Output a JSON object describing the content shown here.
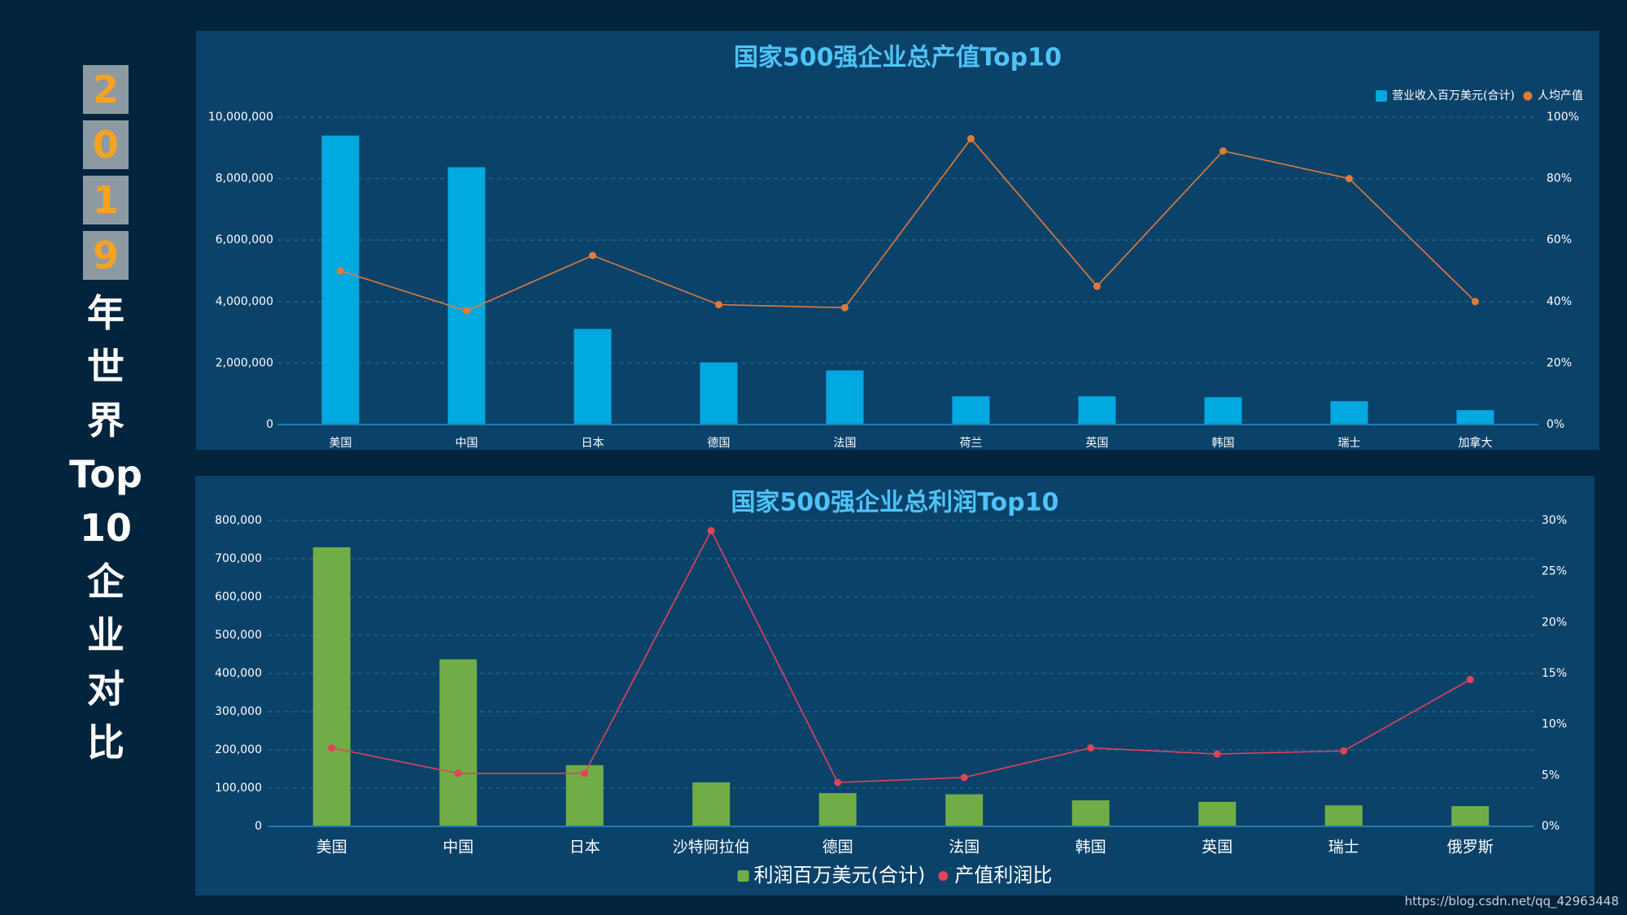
{
  "sidebar": {
    "year_digits": [
      "2",
      "0",
      "1",
      "9"
    ],
    "chars": [
      "年",
      "世",
      "界",
      "Top",
      "10",
      "企",
      "业",
      "对",
      "比"
    ]
  },
  "watermark": "https://blog.csdn.net/qq_42963448",
  "colors": {
    "background": "#03243d",
    "panel": "#0b426a",
    "title": "#4fc3f7",
    "bar1": "#00a9e0",
    "line1": "#e07b39",
    "bar2": "#70ad47",
    "line2": "#e0435a",
    "axis_text": "#ffffff",
    "grid": "#1d6a8f"
  },
  "chart_data": [
    {
      "type": "bar",
      "title": "国家500强企业总产值Top10",
      "categories": [
        "美国",
        "中国",
        "日本",
        "德国",
        "法国",
        "荷兰",
        "英国",
        "韩国",
        "瑞士",
        "加拿大"
      ],
      "series": [
        {
          "name": "营业收入百万美元(合计)",
          "type": "bar",
          "axis": "left",
          "values": [
            9400000,
            8370000,
            3110000,
            2020000,
            1760000,
            920000,
            920000,
            890000,
            760000,
            470000
          ]
        },
        {
          "name": "人均产值",
          "type": "line",
          "axis": "right",
          "values": [
            50,
            37,
            55,
            39,
            38,
            93,
            45,
            89,
            80,
            40
          ]
        }
      ],
      "y_left": {
        "min": 0,
        "max": 10000000,
        "ticks": [
          "0",
          "2,000,000",
          "4,000,000",
          "6,000,000",
          "8,000,000",
          "10,000,000"
        ]
      },
      "y_right": {
        "min": 0,
        "max": 100,
        "ticks": [
          "0%",
          "20%",
          "40%",
          "60%",
          "80%",
          "100%"
        ]
      },
      "legend_position": "top-right",
      "grid": true
    },
    {
      "type": "bar",
      "title": "国家500强企业总利润Top10",
      "categories": [
        "美国",
        "中国",
        "日本",
        "沙特阿拉伯",
        "德国",
        "法国",
        "韩国",
        "英国",
        "瑞士",
        "俄罗斯"
      ],
      "series": [
        {
          "name": "利润百万美元(合计)",
          "type": "bar",
          "axis": "left",
          "values": [
            730000,
            437000,
            160000,
            115000,
            87000,
            84000,
            68000,
            64000,
            55000,
            53000
          ]
        },
        {
          "name": "产值利润比",
          "type": "line",
          "axis": "right",
          "values": [
            7.7,
            5.2,
            5.2,
            29.0,
            4.3,
            4.8,
            7.7,
            7.1,
            7.4,
            14.4
          ]
        }
      ],
      "y_left": {
        "min": 0,
        "max": 800000,
        "ticks": [
          "0",
          "100,000",
          "200,000",
          "300,000",
          "400,000",
          "500,000",
          "600,000",
          "700,000",
          "800,000"
        ]
      },
      "y_right": {
        "min": 0,
        "max": 30,
        "ticks": [
          "0%",
          "5%",
          "10%",
          "15%",
          "20%",
          "25%",
          "30%"
        ]
      },
      "legend_position": "bottom-center",
      "grid": true
    }
  ]
}
